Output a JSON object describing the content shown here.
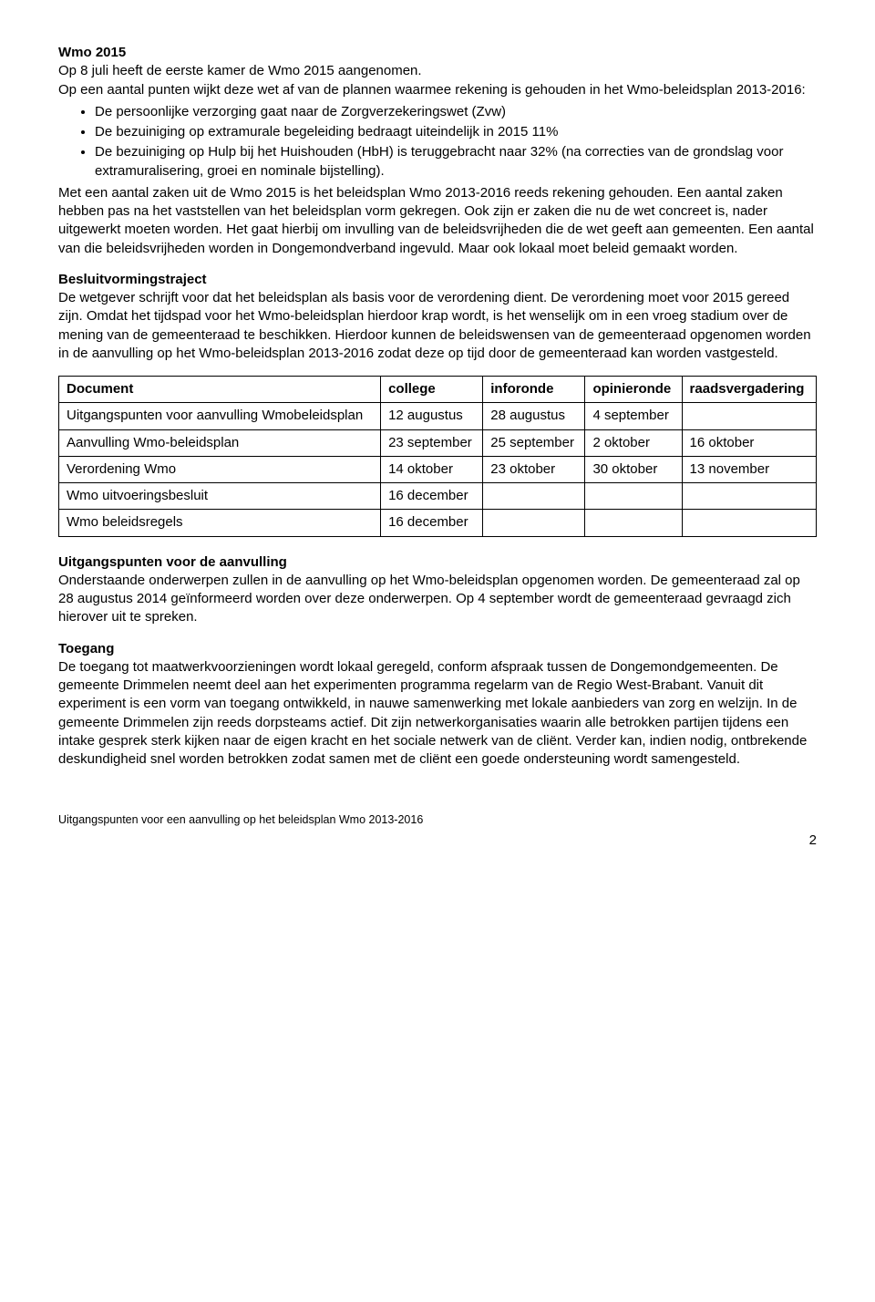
{
  "h1": "Wmo 2015",
  "intro1": "Op 8 juli heeft de eerste kamer de Wmo 2015 aangenomen.",
  "intro2": "Op een aantal punten wijkt deze wet af van de plannen waarmee rekening is gehouden in het Wmo-beleidsplan 2013-2016:",
  "bullets": [
    "De persoonlijke verzorging gaat naar de Zorgverzekeringswet (Zvw)",
    "De bezuiniging op extramurale begeleiding bedraagt uiteindelijk in 2015 11%",
    "De bezuiniging op Hulp bij het Huishouden (HbH) is teruggebracht naar 32% (na correcties van de grondslag voor extramuralisering, groei en nominale bijstelling)."
  ],
  "para1": "Met een aantal zaken uit de Wmo 2015 is het beleidsplan Wmo 2013-2016 reeds rekening gehouden. Een aantal zaken hebben pas na het vaststellen van het beleidsplan vorm gekregen. Ook zijn er zaken die nu de wet concreet is, nader uitgewerkt moeten worden. Het gaat hierbij om invulling van de beleidsvrijheden die de wet geeft aan gemeenten. Een aantal van die beleidsvrijheden worden in Dongemondverband ingevuld. Maar ook lokaal moet beleid gemaakt worden.",
  "h2a": "Besluitvormingstraject",
  "para2": "De wetgever schrijft voor dat het beleidsplan als basis voor de verordening dient. De verordening moet voor 2015 gereed zijn. Omdat het tijdspad voor het Wmo-beleidsplan hierdoor krap wordt, is het wenselijk om in een vroeg stadium over de mening van de gemeenteraad te beschikken. Hierdoor kunnen de beleidswensen van de gemeenteraad opgenomen worden in de aanvulling op het Wmo-beleidsplan 2013-2016 zodat deze op tijd door de gemeenteraad kan worden vastgesteld.",
  "table": {
    "headers": [
      "Document",
      "college",
      "inforonde",
      "opinieronde",
      "raadsvergadering"
    ],
    "rows": [
      [
        "Uitgangspunten voor aanvulling Wmobeleidsplan",
        "12 augustus",
        "28 augustus",
        "4 september",
        ""
      ],
      [
        "Aanvulling Wmo-beleidsplan",
        "23 september",
        "25 september",
        "2 oktober",
        "16 oktober"
      ],
      [
        "Verordening Wmo",
        "14 oktober",
        "23 oktober",
        "30 oktober",
        "13 november"
      ],
      [
        "Wmo uitvoeringsbesluit",
        "16 december",
        "",
        "",
        ""
      ],
      [
        "Wmo beleidsregels",
        "16 december",
        "",
        "",
        ""
      ]
    ]
  },
  "h2b": "Uitgangspunten voor de aanvulling",
  "para3": "Onderstaande onderwerpen zullen in de aanvulling op het Wmo-beleidsplan opgenomen worden. De gemeenteraad zal op 28 augustus 2014 geïnformeerd worden over deze onderwerpen. Op 4 september wordt de gemeenteraad gevraagd zich hierover uit te spreken.",
  "h2c": "Toegang",
  "para4": "De toegang tot maatwerkvoorzieningen wordt lokaal geregeld, conform afspraak tussen de Dongemondgemeenten. De gemeente Drimmelen neemt deel aan het experimenten programma regelarm van de Regio West-Brabant. Vanuit dit experiment is een vorm van toegang ontwikkeld, in nauwe samenwerking met lokale aanbieders van zorg en welzijn. In de gemeente Drimmelen zijn reeds dorpsteams actief. Dit zijn netwerkorganisaties waarin alle betrokken partijen tijdens een intake gesprek sterk kijken naar de eigen kracht en het sociale netwerk van de cliënt. Verder kan, indien nodig, ontbrekende deskundigheid snel worden betrokken zodat samen met de cliënt een goede ondersteuning wordt samengesteld.",
  "footer": "Uitgangspunten voor een aanvulling op het beleidsplan Wmo 2013-2016",
  "page": "2"
}
